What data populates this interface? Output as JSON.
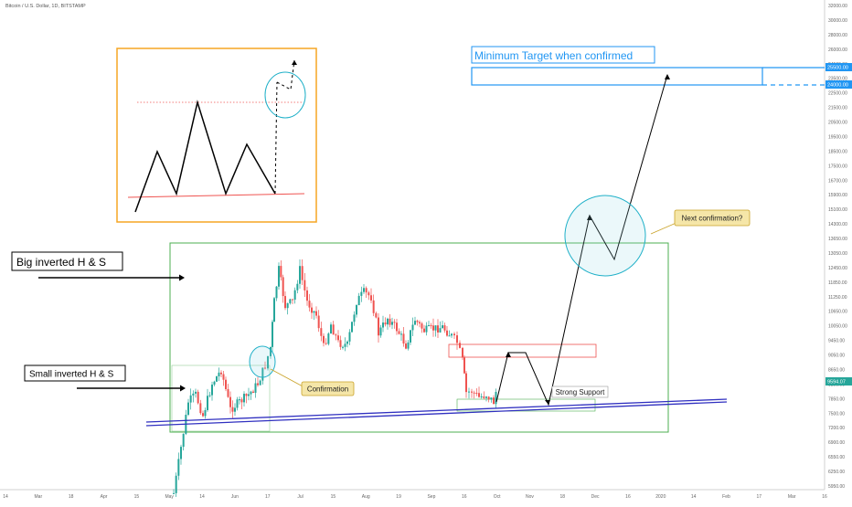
{
  "header": {
    "symbol_line": "Bitcoin / U.S. Dollar, 1D, BITSTAMP"
  },
  "colors": {
    "up": "#26a69a",
    "down": "#ef5350",
    "box": "#4caf50",
    "target": "#2196f3",
    "trendline": "#3030c0",
    "callout_bg": "#f5e6a8",
    "callout_border": "#c9a227"
  },
  "chart_data": {
    "type": "candlestick",
    "ylim": [
      5800,
      32000
    ],
    "y_ticks": [
      "32000.00",
      "30000.00",
      "28000.00",
      "26000.00",
      "24500.00",
      "23500.00",
      "22500.00",
      "21500.00",
      "20500.00",
      "19500.00",
      "18500.00",
      "17500.00",
      "16700.00",
      "15900.00",
      "15100.00",
      "14300.00",
      "13650.00",
      "13050.00",
      "12450.00",
      "11850.00",
      "11250.00",
      "10650.00",
      "10050.00",
      "9450.00",
      "9050.00",
      "8650.00",
      "8250.00",
      "7850.00",
      "7500.00",
      "7200.00",
      "6900.00",
      "6550.00",
      "6250.00",
      "5950.00"
    ],
    "x_ticks": [
      "14",
      "Mar",
      "18",
      "Apr",
      "15",
      "May",
      "14",
      "Jun",
      "17",
      "Jul",
      "15",
      "Aug",
      "19",
      "Sep",
      "16",
      "Oct",
      "Nov",
      "18",
      "Dec",
      "16",
      "2020",
      "14",
      "Feb",
      "17",
      "Mar",
      "16"
    ],
    "last_price": "9594.07",
    "target_prices": [
      "25500.00",
      "24000.00"
    ],
    "annotations": {
      "big_hs": "Big inverted H & S",
      "small_hs": "Small inverted H & S",
      "target": "Minimum Target when confirmed",
      "confirmation": "Confirmation",
      "next_confirmation": "Next confirmation?",
      "strong_support": "Strong Support"
    }
  }
}
